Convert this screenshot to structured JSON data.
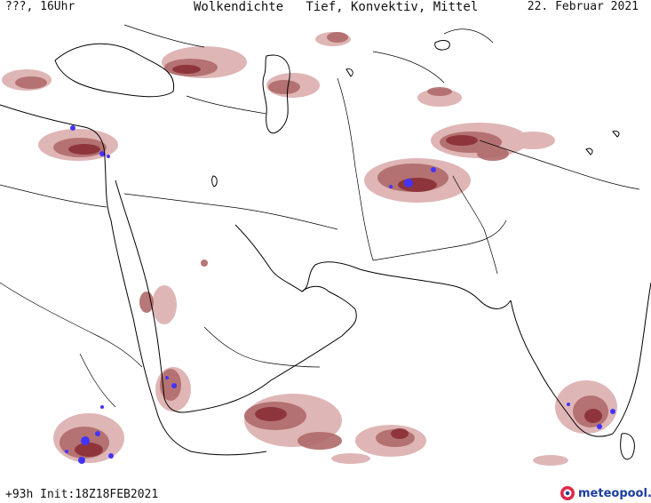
{
  "header": {
    "left": "???, 16Uhr",
    "center": "Wolkendichte   Tief, Konvektiv, Mittel",
    "right": "22. Februar 2021"
  },
  "footer": {
    "left": "+93h Init:18Z18FEB2021",
    "brand": "meteopool.org"
  },
  "colors": {
    "light": "#dcaeae",
    "medium": "#b06a6a",
    "dark": "#8a2f36",
    "convective": "#4433ff",
    "coast": "#000000"
  },
  "legend_levels": [
    "Tief",
    "Konvektiv",
    "Mittel"
  ]
}
